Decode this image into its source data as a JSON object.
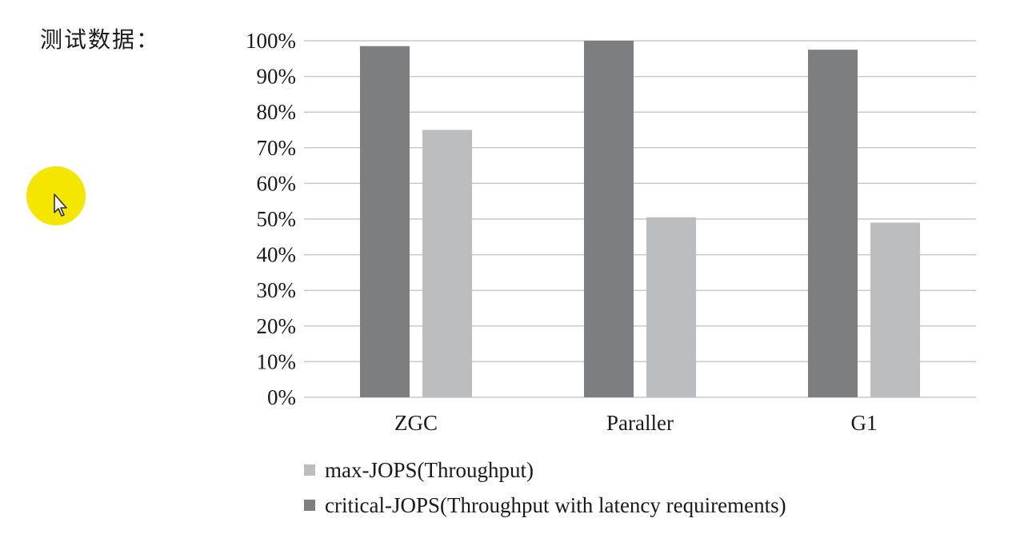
{
  "heading": "测试数据：",
  "icons": {
    "cursor": "mouse-pointer-icon"
  },
  "colors": {
    "critical": "#7c7e7f",
    "max": "#bcbdbe",
    "grid": "#c8c8c8",
    "highlight": "#f5e600"
  },
  "chart_data": {
    "type": "bar",
    "categories": [
      "ZGC",
      "Paraller",
      "G1"
    ],
    "series": [
      {
        "name": "critical-JOPS(Throughput with latency requirements)",
        "values": [
          98.5,
          100,
          97.5
        ]
      },
      {
        "name": "max-JOPS(Throughput)",
        "values": [
          75,
          50.5,
          49
        ]
      }
    ],
    "yticks": [
      "0%",
      "10%",
      "20%",
      "30%",
      "40%",
      "50%",
      "60%",
      "70%",
      "80%",
      "90%",
      "100%"
    ],
    "ylim": [
      0,
      100
    ],
    "grid": true,
    "legend_position": "bottom",
    "legend": [
      {
        "label": "max-JOPS(Throughput)",
        "series": 1
      },
      {
        "label": "critical-JOPS(Throughput with latency requirements)",
        "series": 0
      }
    ]
  }
}
